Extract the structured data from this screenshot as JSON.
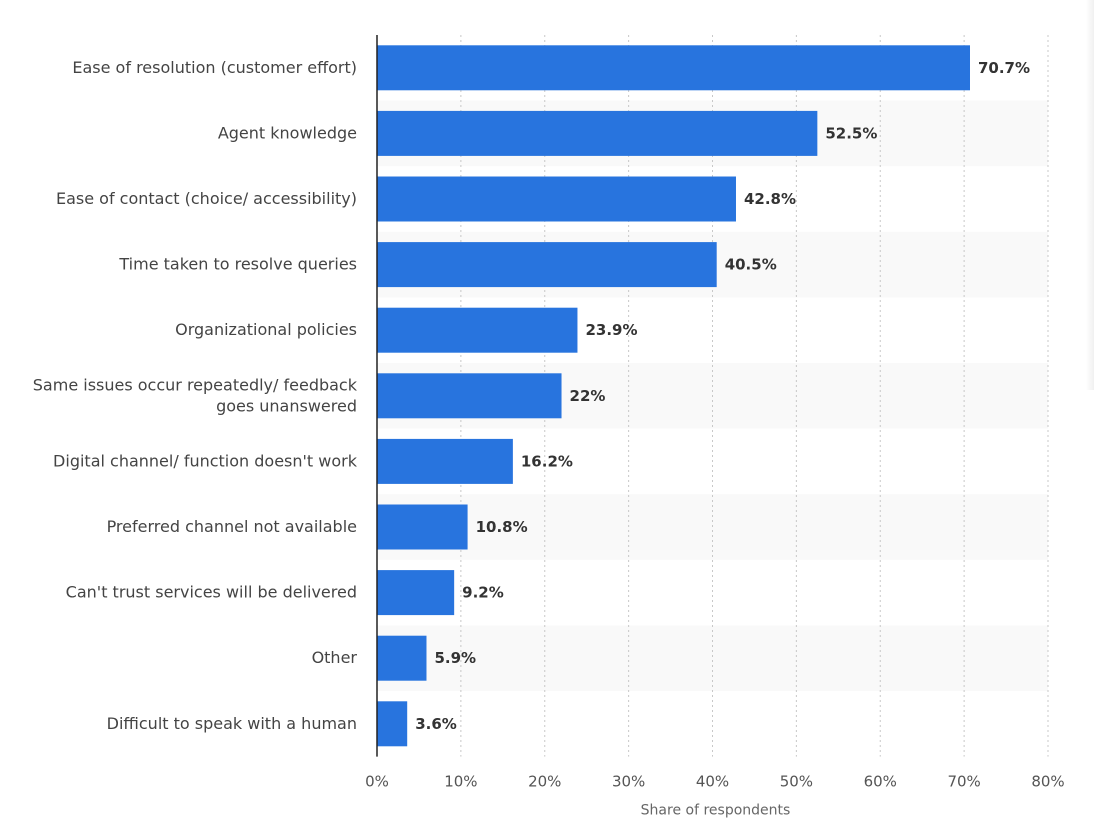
{
  "chart_data": {
    "type": "bar",
    "orientation": "horizontal",
    "categories": [
      [
        "Ease of resolution (customer effort)"
      ],
      [
        "Agent knowledge"
      ],
      [
        "Ease of contact (choice/ accessibility)"
      ],
      [
        "Time taken to resolve queries"
      ],
      [
        "Organizational policies"
      ],
      [
        "Same issues occur repeatedly/ feedback",
        "goes unanswered"
      ],
      [
        "Digital channel/ function doesn't work"
      ],
      [
        "Preferred channel not available"
      ],
      [
        "Can't trust services will be delivered"
      ],
      [
        "Other"
      ],
      [
        "Difficult to speak with a human"
      ]
    ],
    "values": [
      70.7,
      52.5,
      42.8,
      40.5,
      23.9,
      22,
      16.2,
      10.8,
      9.2,
      5.9,
      3.6
    ],
    "value_labels": [
      "70.7%",
      "52.5%",
      "42.8%",
      "40.5%",
      "23.9%",
      "22%",
      "16.2%",
      "10.8%",
      "9.2%",
      "5.9%",
      "3.6%"
    ],
    "xlabel": "Share of respondents",
    "ylabel": "",
    "xlim": [
      0,
      80
    ],
    "x_ticks": [
      0,
      10,
      20,
      30,
      40,
      50,
      60,
      70,
      80
    ],
    "x_tick_labels": [
      "0%",
      "10%",
      "20%",
      "30%",
      "40%",
      "50%",
      "60%",
      "70%",
      "80%"
    ],
    "grid": true,
    "colors": {
      "bar": "#2874de",
      "band": "#f9f9f9",
      "grid": "#c8c8c8",
      "axis": "#222222"
    }
  }
}
